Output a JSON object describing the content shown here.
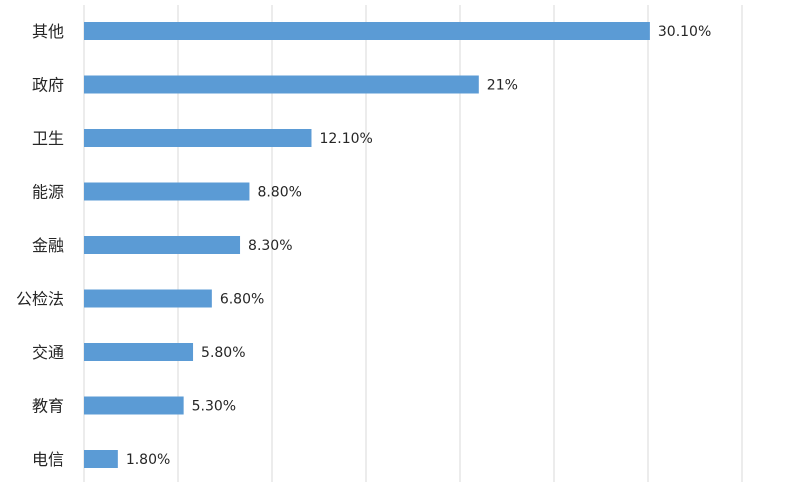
{
  "chart_data": {
    "type": "bar",
    "orientation": "horizontal",
    "categories": [
      "其他",
      "政府",
      "卫生",
      "能源",
      "金融",
      "公检法",
      "交通",
      "教育",
      "电信"
    ],
    "values": [
      30.1,
      21,
      12.1,
      8.8,
      8.3,
      6.8,
      5.8,
      5.3,
      1.8
    ],
    "data_labels": [
      "30.10%",
      "21%",
      "12.10%",
      "8.80%",
      "8.30%",
      "6.80%",
      "5.80%",
      "5.30%",
      "1.80%"
    ],
    "xlim": [
      0,
      35
    ],
    "grid": true,
    "bar_color": "#5b9bd5",
    "grid_color": "#d9d9d9",
    "label_color": "#262626"
  }
}
